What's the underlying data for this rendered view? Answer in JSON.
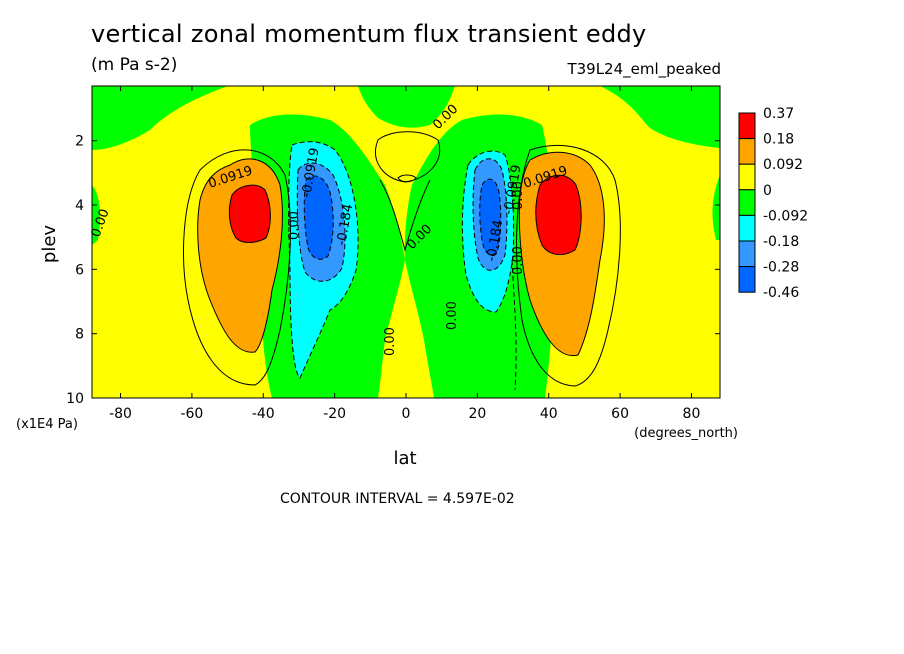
{
  "title": "vertical zonal momentum flux transient eddy",
  "units": "(m Pa s-2)",
  "dataset": "T39L24_eml_peaked",
  "colors": {
    "red": "#ff0000",
    "orange": "#ffa500",
    "yellow": "#ffff00",
    "green": "#00ff00",
    "cyan": "#00ffff",
    "lightblue": "#3399ff",
    "blue": "#0066ff",
    "darkblue": "#0033ff"
  },
  "chart_data": {
    "type": "contour",
    "xlabel": "lat",
    "x_units": "(degrees_north)",
    "ylabel": "plev",
    "y_units": "(x1E4 Pa)",
    "xlim": [
      -88,
      88
    ],
    "ylim": [
      10,
      0.3
    ],
    "x_ticks": [
      "-80",
      "-60",
      "-40",
      "-20",
      "0",
      "20",
      "40",
      "60",
      "80"
    ],
    "y_ticks": [
      "2",
      "4",
      "6",
      "8",
      "10"
    ],
    "colorbar": {
      "labels": [
        "0.37",
        "0.18",
        "0.092",
        "0",
        "-0.092",
        "-0.18",
        "-0.28",
        "-0.46"
      ],
      "colors": [
        "#ff0000",
        "#ffa500",
        "#ffff00",
        "#00ff00",
        "#00ffff",
        "#3399ff",
        "#0066ff"
      ]
    },
    "contour_labels": [
      "0.0919",
      "0.0919",
      "0.00",
      "0.00",
      "0.00",
      "0.00",
      "0.00",
      "0.00",
      "0.00",
      "0.00",
      "-0.0919",
      "-0.184",
      "-0.184",
      "-0.0919"
    ],
    "footer": "CONTOUR INTERVAL = 4.597E-02"
  }
}
